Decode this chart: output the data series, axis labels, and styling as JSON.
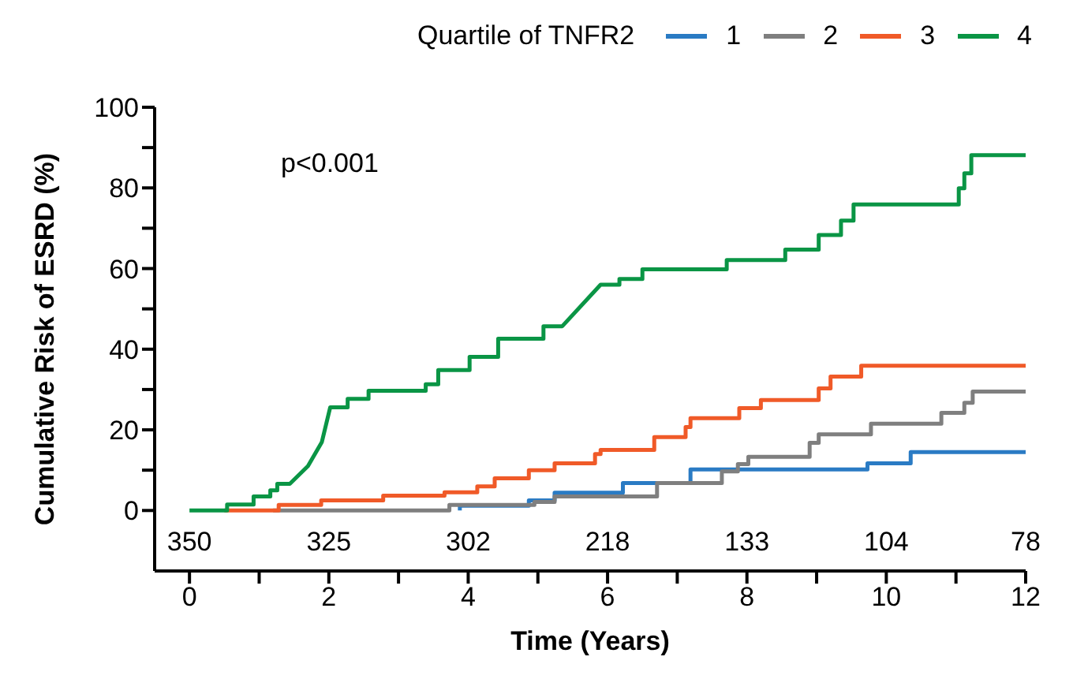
{
  "chart_data": {
    "type": "line",
    "xlabel": "Time (Years)",
    "ylabel": "Cumulative Risk of ESRD (%)",
    "legend_title": "Quartile of TNFR2",
    "legend": "top",
    "grid": false,
    "marker": "none",
    "line_style": "solid",
    "xlim": [
      -0.5,
      12
    ],
    "xticks": [
      0,
      {
        "value": 1,
        "label": null
      },
      2,
      {
        "value": 3,
        "label": null
      },
      4,
      {
        "value": 5,
        "label": null
      },
      6,
      {
        "value": 7,
        "label": null
      },
      8,
      {
        "value": 9,
        "label": null
      },
      10,
      {
        "value": 11,
        "label": null
      },
      12
    ],
    "ylim": [
      -15,
      100
    ],
    "yticks": [
      0,
      {
        "value": 10,
        "label": null
      },
      20,
      {
        "value": 30,
        "label": null
      },
      40,
      {
        "value": 50,
        "label": null
      },
      60,
      {
        "value": 70,
        "label": null
      },
      80,
      {
        "value": 90,
        "label": null
      },
      100
    ],
    "series": [
      {
        "name": "1",
        "color": "#2a7bc4",
        "x": [
          3.88,
          3.88,
          4.87,
          4.87,
          5.24,
          5.24,
          6.22,
          6.22,
          7.19,
          7.19,
          9.73,
          9.73,
          10.35,
          10.35,
          12
        ],
        "values": [
          0,
          1.2,
          1.2,
          2.5,
          2.5,
          4.4,
          4.4,
          6.8,
          6.8,
          10.2,
          10.2,
          11.7,
          11.7,
          14.5,
          14.5
        ]
      },
      {
        "name": "2",
        "color": "#7f7f7f",
        "x": [
          1.2,
          3.73,
          3.73,
          4.95,
          4.95,
          5.24,
          5.24,
          6.71,
          6.71,
          7.64,
          7.64,
          7.87,
          7.87,
          8.02,
          8.02,
          8.9,
          8.9,
          9.03,
          9.03,
          9.78,
          9.78,
          10.79,
          10.79,
          11.12,
          11.12,
          11.24,
          11.24,
          12
        ],
        "values": [
          0,
          0,
          1.4,
          1.4,
          2.1,
          2.1,
          3.5,
          3.5,
          6.8,
          6.8,
          9.7,
          9.7,
          11.5,
          11.5,
          13.3,
          13.3,
          16.8,
          16.8,
          18.9,
          18.9,
          21.5,
          21.5,
          24.2,
          24.2,
          26.7,
          26.7,
          29.5,
          29.5
        ]
      },
      {
        "name": "3",
        "color": "#f05a28",
        "x": [
          0.5,
          1.28,
          1.28,
          1.89,
          1.89,
          2.78,
          2.78,
          3.66,
          3.66,
          4.13,
          4.13,
          4.38,
          4.38,
          4.87,
          4.87,
          5.24,
          5.24,
          5.82,
          5.82,
          5.9,
          5.9,
          6.67,
          6.67,
          7.12,
          7.12,
          7.19,
          7.19,
          7.89,
          7.89,
          8.2,
          8.2,
          9.03,
          9.03,
          9.2,
          9.2,
          9.64,
          9.64,
          12
        ],
        "values": [
          0,
          0,
          1.4,
          1.4,
          2.5,
          2.5,
          3.7,
          3.7,
          4.5,
          4.5,
          6,
          6,
          8,
          8,
          10,
          10,
          11.7,
          11.7,
          14,
          14,
          15,
          15,
          18.2,
          18.2,
          20.7,
          20.7,
          22.9,
          22.9,
          25.4,
          25.4,
          27.4,
          27.4,
          30.3,
          30.3,
          33.2,
          33.2,
          35.9,
          35.9
        ]
      },
      {
        "name": "4",
        "color": "#0a9545",
        "x": [
          0,
          0.54,
          0.54,
          0.92,
          0.92,
          1.16,
          1.16,
          1.26,
          1.26,
          1.44,
          1.7,
          1.9,
          2.02,
          2.02,
          2.27,
          2.27,
          2.57,
          2.57,
          3.39,
          3.39,
          3.57,
          3.57,
          4.02,
          4.02,
          4.43,
          4.43,
          5.08,
          5.08,
          5.35,
          5.9,
          6.17,
          6.17,
          6.5,
          6.5,
          7.71,
          7.71,
          8.55,
          8.55,
          9.03,
          9.03,
          9.35,
          9.35,
          9.53,
          9.53,
          11.04,
          11.04,
          11.12,
          11.12,
          11.22,
          11.22,
          12
        ],
        "values": [
          0,
          0,
          1.5,
          1.5,
          3.5,
          3.5,
          5,
          5,
          6.6,
          6.6,
          11,
          17,
          25.6,
          25.6,
          25.6,
          27.7,
          27.7,
          29.7,
          29.7,
          31.3,
          31.3,
          34.8,
          34.8,
          38.1,
          38.1,
          42.6,
          42.6,
          45.7,
          45.7,
          56,
          56,
          57.4,
          57.4,
          59.8,
          59.8,
          62.1,
          62.1,
          64.7,
          64.7,
          68.3,
          68.3,
          71.9,
          71.9,
          75.9,
          75.9,
          79.9,
          79.9,
          83.6,
          83.6,
          88.1,
          88.1
        ]
      }
    ],
    "annotations": [
      "p<0.001",
      "350",
      "325",
      "302",
      "218",
      "133",
      "104",
      "78"
    ]
  }
}
